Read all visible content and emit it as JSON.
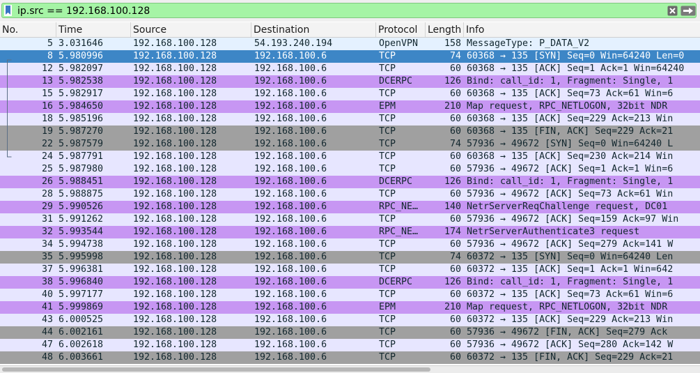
{
  "filter": {
    "text": "ip.src == 192.168.100.128"
  },
  "columns": [
    {
      "label": "No."
    },
    {
      "label": "Time"
    },
    {
      "label": "Source"
    },
    {
      "label": "Destination"
    },
    {
      "label": "Protocol"
    },
    {
      "label": "Length"
    },
    {
      "label": "Info"
    }
  ],
  "colors": {
    "filter_valid": "#a5f4a5",
    "openvpn_row": "#e4f1ff",
    "tcp_row": "#e7e6ff",
    "rpc_row": "#c796f3",
    "fin_syn_row": "#a0a0a0",
    "selected_row": "#3d86c6"
  },
  "packets": [
    {
      "no": "5",
      "time": "3.031646",
      "src": "192.168.100.128",
      "dst": "54.193.240.194",
      "proto": "OpenVPN",
      "len": "158",
      "info": "MessageType: P_DATA_V2",
      "kind": "openvpn"
    },
    {
      "no": "8",
      "time": "5.980996",
      "src": "192.168.100.128",
      "dst": "192.168.100.6",
      "proto": "TCP",
      "len": "74",
      "info": "60368 → 135 [SYN] Seq=0 Win=64240 Len=0",
      "kind": "sel"
    },
    {
      "no": "12",
      "time": "5.982097",
      "src": "192.168.100.128",
      "dst": "192.168.100.6",
      "proto": "TCP",
      "len": "60",
      "info": "60368 → 135 [ACK] Seq=1 Ack=1 Win=64240",
      "kind": "tcp"
    },
    {
      "no": "13",
      "time": "5.982538",
      "src": "192.168.100.128",
      "dst": "192.168.100.6",
      "proto": "DCERPC",
      "len": "126",
      "info": "Bind: call_id: 1, Fragment: Single, 1",
      "kind": "rpc"
    },
    {
      "no": "15",
      "time": "5.982917",
      "src": "192.168.100.128",
      "dst": "192.168.100.6",
      "proto": "TCP",
      "len": "60",
      "info": "60368 → 135 [ACK] Seq=73 Ack=61 Win=6",
      "kind": "tcp"
    },
    {
      "no": "16",
      "time": "5.984650",
      "src": "192.168.100.128",
      "dst": "192.168.100.6",
      "proto": "EPM",
      "len": "210",
      "info": "Map request, RPC_NETLOGON, 32bit NDR",
      "kind": "rpc"
    },
    {
      "no": "18",
      "time": "5.985196",
      "src": "192.168.100.128",
      "dst": "192.168.100.6",
      "proto": "TCP",
      "len": "60",
      "info": "60368 → 135 [ACK] Seq=229 Ack=213 Win",
      "kind": "tcp"
    },
    {
      "no": "19",
      "time": "5.987270",
      "src": "192.168.100.128",
      "dst": "192.168.100.6",
      "proto": "TCP",
      "len": "60",
      "info": "60368 → 135 [FIN, ACK] Seq=229 Ack=21",
      "kind": "grey"
    },
    {
      "no": "22",
      "time": "5.987579",
      "src": "192.168.100.128",
      "dst": "192.168.100.6",
      "proto": "TCP",
      "len": "74",
      "info": "57936 → 49672 [SYN] Seq=0 Win=64240 L",
      "kind": "grey"
    },
    {
      "no": "24",
      "time": "5.987791",
      "src": "192.168.100.128",
      "dst": "192.168.100.6",
      "proto": "TCP",
      "len": "60",
      "info": "60368 → 135 [ACK] Seq=230 Ack=214 Win",
      "kind": "tcp"
    },
    {
      "no": "25",
      "time": "5.987980",
      "src": "192.168.100.128",
      "dst": "192.168.100.6",
      "proto": "TCP",
      "len": "60",
      "info": "57936 → 49672 [ACK] Seq=1 Ack=1 Win=6",
      "kind": "tcp"
    },
    {
      "no": "26",
      "time": "5.988451",
      "src": "192.168.100.128",
      "dst": "192.168.100.6",
      "proto": "DCERPC",
      "len": "126",
      "info": "Bind: call_id: 1, Fragment: Single, 1",
      "kind": "rpc"
    },
    {
      "no": "28",
      "time": "5.988875",
      "src": "192.168.100.128",
      "dst": "192.168.100.6",
      "proto": "TCP",
      "len": "60",
      "info": "57936 → 49672 [ACK] Seq=73 Ack=61 Win",
      "kind": "tcp"
    },
    {
      "no": "29",
      "time": "5.990526",
      "src": "192.168.100.128",
      "dst": "192.168.100.6",
      "proto": "RPC_NE…",
      "len": "140",
      "info": "NetrServerReqChallenge request, DC01",
      "kind": "rpc"
    },
    {
      "no": "31",
      "time": "5.991262",
      "src": "192.168.100.128",
      "dst": "192.168.100.6",
      "proto": "TCP",
      "len": "60",
      "info": "57936 → 49672 [ACK] Seq=159 Ack=97 Win",
      "kind": "tcp"
    },
    {
      "no": "32",
      "time": "5.993544",
      "src": "192.168.100.128",
      "dst": "192.168.100.6",
      "proto": "RPC_NE…",
      "len": "174",
      "info": "NetrServerAuthenticate3 request",
      "kind": "rpc"
    },
    {
      "no": "34",
      "time": "5.994738",
      "src": "192.168.100.128",
      "dst": "192.168.100.6",
      "proto": "TCP",
      "len": "60",
      "info": "57936 → 49672 [ACK] Seq=279 Ack=141 W",
      "kind": "tcp"
    },
    {
      "no": "35",
      "time": "5.995998",
      "src": "192.168.100.128",
      "dst": "192.168.100.6",
      "proto": "TCP",
      "len": "74",
      "info": "60372 → 135 [SYN] Seq=0 Win=64240 Len",
      "kind": "grey"
    },
    {
      "no": "37",
      "time": "5.996381",
      "src": "192.168.100.128",
      "dst": "192.168.100.6",
      "proto": "TCP",
      "len": "60",
      "info": "60372 → 135 [ACK] Seq=1 Ack=1 Win=642",
      "kind": "tcp"
    },
    {
      "no": "38",
      "time": "5.996840",
      "src": "192.168.100.128",
      "dst": "192.168.100.6",
      "proto": "DCERPC",
      "len": "126",
      "info": "Bind: call_id: 1, Fragment: Single, 1",
      "kind": "rpc"
    },
    {
      "no": "40",
      "time": "5.997177",
      "src": "192.168.100.128",
      "dst": "192.168.100.6",
      "proto": "TCP",
      "len": "60",
      "info": "60372 → 135 [ACK] Seq=73 Ack=61 Win=6",
      "kind": "tcp"
    },
    {
      "no": "41",
      "time": "5.999869",
      "src": "192.168.100.128",
      "dst": "192.168.100.6",
      "proto": "EPM",
      "len": "210",
      "info": "Map request, RPC_NETLOGON, 32bit NDR",
      "kind": "rpc"
    },
    {
      "no": "43",
      "time": "6.000525",
      "src": "192.168.100.128",
      "dst": "192.168.100.6",
      "proto": "TCP",
      "len": "60",
      "info": "60372 → 135 [ACK] Seq=229 Ack=213 Win",
      "kind": "tcp"
    },
    {
      "no": "44",
      "time": "6.002161",
      "src": "192.168.100.128",
      "dst": "192.168.100.6",
      "proto": "TCP",
      "len": "60",
      "info": "57936 → 49672 [FIN, ACK] Seq=279 Ack",
      "kind": "grey"
    },
    {
      "no": "47",
      "time": "6.002618",
      "src": "192.168.100.128",
      "dst": "192.168.100.6",
      "proto": "TCP",
      "len": "60",
      "info": "57936 → 49672 [ACK] Seq=280 Ack=142 W",
      "kind": "tcp"
    },
    {
      "no": "48",
      "time": "6.003661",
      "src": "192.168.100.128",
      "dst": "192.168.100.6",
      "proto": "TCP",
      "len": "60",
      "info": "60372 → 135 [FIN, ACK] Seq=229 Ack=21",
      "kind": "grey"
    }
  ]
}
